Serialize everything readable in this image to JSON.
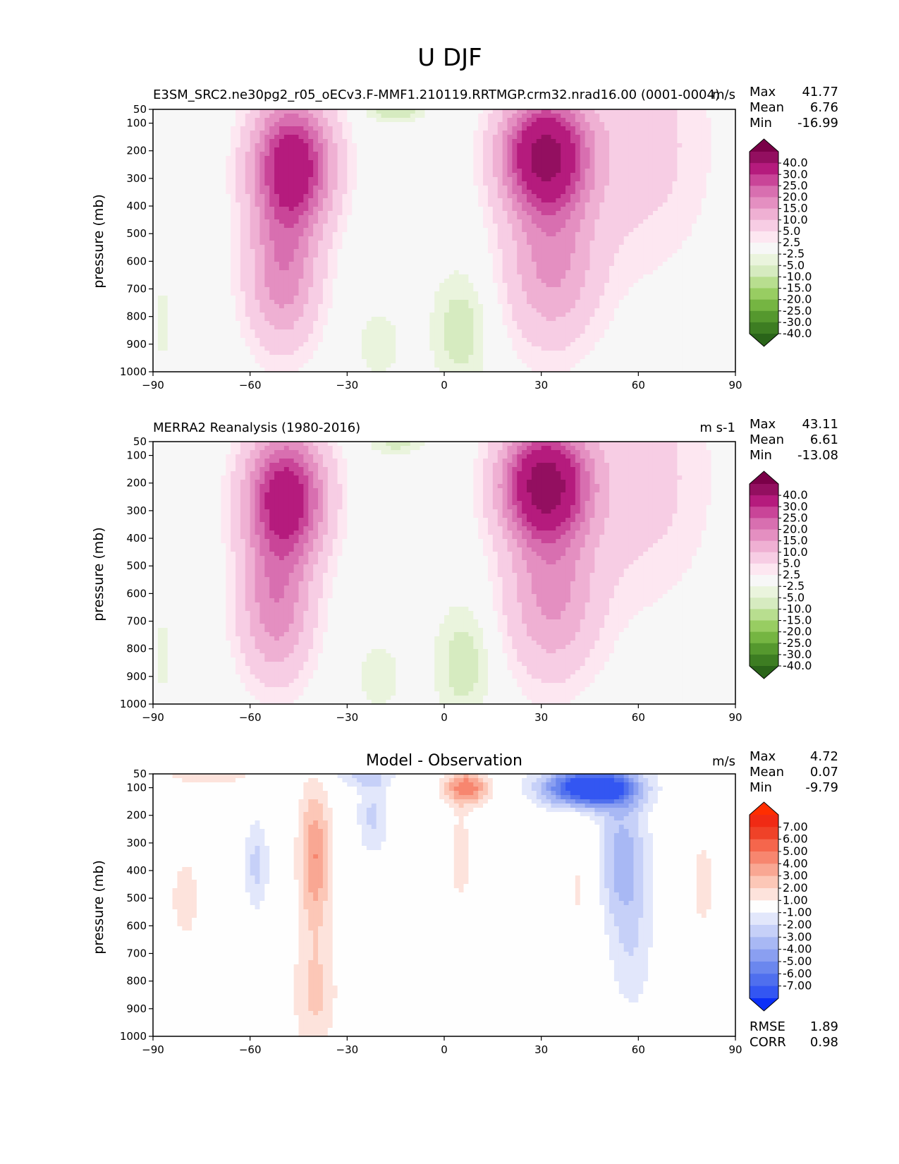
{
  "figure_title": "U DJF",
  "colors": {
    "div_pos": [
      "#fde7f1",
      "#f7cde4",
      "#efb0d3",
      "#e48fc1",
      "#d86fb0",
      "#c94598",
      "#b51b7d",
      "#930f60",
      "#7a0048"
    ],
    "div_neg": [
      "#eaf4dd",
      "#d6ebc0",
      "#b8de8f",
      "#98cd62",
      "#75b542",
      "#55982e",
      "#3d7d22",
      "#2a6419"
    ],
    "div_neutral": "#f7f7f7",
    "diff_pos": [
      "#fde3dc",
      "#fcc7b7",
      "#f9a793",
      "#f7866f",
      "#f5664c",
      "#ef4228",
      "#f02a14",
      "#ff2e00"
    ],
    "diff_neg": [
      "#e2e7fb",
      "#c6d0f8",
      "#a8b8f4",
      "#8a9ff1",
      "#6b87ee",
      "#4f6fee",
      "#3356f2",
      "#0b2ff7"
    ],
    "diff_neutral": "#fefefe"
  },
  "chart_data": [
    {
      "type": "contourf",
      "panel": "test",
      "title_left": "E3SM_SRC2.ne30pg2_r05_oECv3.F-MMF1.210119.RRTMGP.crm32.nrad16.00 (0001-0004)",
      "title_right": "m/s",
      "ylabel": "pressure (mb)",
      "xlim": [
        -90,
        90
      ],
      "ylim": [
        1000,
        50
      ],
      "xticks": [
        "−90",
        "−60",
        "−30",
        "0",
        "30",
        "60",
        "90"
      ],
      "yticks": [
        "50",
        "100",
        "200",
        "300",
        "400",
        "500",
        "600",
        "700",
        "800",
        "900",
        "1000"
      ],
      "stats": [
        {
          "label": "Max",
          "value": "41.77"
        },
        {
          "label": "Mean",
          "value": "6.76"
        },
        {
          "label": "Min",
          "value": "-16.99"
        }
      ],
      "colorbar_levels": [
        "40.0",
        "30.0",
        "25.0",
        "20.0",
        "15.0",
        "10.0",
        "5.0",
        "2.5",
        "-2.5",
        "-5.0",
        "-10.0",
        "-15.0",
        "-20.0",
        "-25.0",
        "-30.0",
        "-40.0"
      ],
      "features": [
        {
          "name": "southern jet",
          "lat": -47,
          "p": 250,
          "peak": 37
        },
        {
          "name": "northern jet",
          "lat": 31,
          "p": 210,
          "peak": 41.77
        },
        {
          "name": "tropical easterlies",
          "lat": 5,
          "p": 850,
          "peak": -7
        },
        {
          "name": "stratospheric easterlies",
          "lat": -15,
          "p": 60,
          "peak": -8
        }
      ]
    },
    {
      "type": "contourf",
      "panel": "reference",
      "title_left": "MERRA2 Reanalysis (1980-2016)",
      "title_right": "m s-1",
      "ylabel": "pressure (mb)",
      "xlim": [
        -90,
        90
      ],
      "ylim": [
        1000,
        50
      ],
      "xticks": [
        "−90",
        "−60",
        "−30",
        "0",
        "30",
        "60",
        "90"
      ],
      "yticks": [
        "50",
        "100",
        "200",
        "300",
        "400",
        "500",
        "600",
        "700",
        "800",
        "900",
        "1000"
      ],
      "stats": [
        {
          "label": "Max",
          "value": "43.11"
        },
        {
          "label": "Mean",
          "value": "6.61"
        },
        {
          "label": "Min",
          "value": "-13.08"
        }
      ],
      "colorbar_levels": [
        "40.0",
        "30.0",
        "25.0",
        "20.0",
        "15.0",
        "10.0",
        "5.0",
        "2.5",
        "-2.5",
        "-5.0",
        "-10.0",
        "-15.0",
        "-20.0",
        "-25.0",
        "-30.0",
        "-40.0"
      ],
      "features": [
        {
          "name": "southern jet",
          "lat": -49,
          "p": 250,
          "peak": 36
        },
        {
          "name": "northern jet",
          "lat": 31,
          "p": 200,
          "peak": 43.11
        },
        {
          "name": "tropical easterlies",
          "lat": 6,
          "p": 850,
          "peak": -7
        },
        {
          "name": "stratospheric easterlies",
          "lat": -15,
          "p": 60,
          "peak": -6
        }
      ]
    },
    {
      "type": "contourf",
      "panel": "difference",
      "title_center": "Model - Observation",
      "title_right": "m/s",
      "ylabel": "pressure (mb)",
      "xlim": [
        -90,
        90
      ],
      "ylim": [
        1000,
        50
      ],
      "xticks": [
        "−90",
        "−60",
        "−30",
        "0",
        "30",
        "60",
        "90"
      ],
      "yticks": [
        "50",
        "100",
        "200",
        "300",
        "400",
        "500",
        "600",
        "700",
        "800",
        "900",
        "1000"
      ],
      "stats": [
        {
          "label": "Max",
          "value": "4.72"
        },
        {
          "label": "Mean",
          "value": "0.07"
        },
        {
          "label": "Min",
          "value": "-9.79"
        }
      ],
      "extra_stats": [
        {
          "label": "RMSE",
          "value": "1.89"
        },
        {
          "label": "CORR",
          "value": "0.98"
        }
      ],
      "colorbar_levels": [
        "7.00",
        "6.00",
        "5.00",
        "4.00",
        "3.00",
        "2.00",
        "1.00",
        "-1.00",
        "-2.00",
        "-3.00",
        "-4.00",
        "-5.00",
        "-6.00",
        "-7.00"
      ],
      "features": [
        {
          "name": "NH stratospheric negative bias",
          "lat": 45,
          "p": 100,
          "peak": -9.79
        },
        {
          "name": "tropical upper positive bias",
          "lat": 7,
          "p": 100,
          "peak": 4.72
        },
        {
          "name": "southern midlatitude positive bias",
          "lat": -40,
          "p": 350,
          "peak": 4
        }
      ]
    }
  ]
}
